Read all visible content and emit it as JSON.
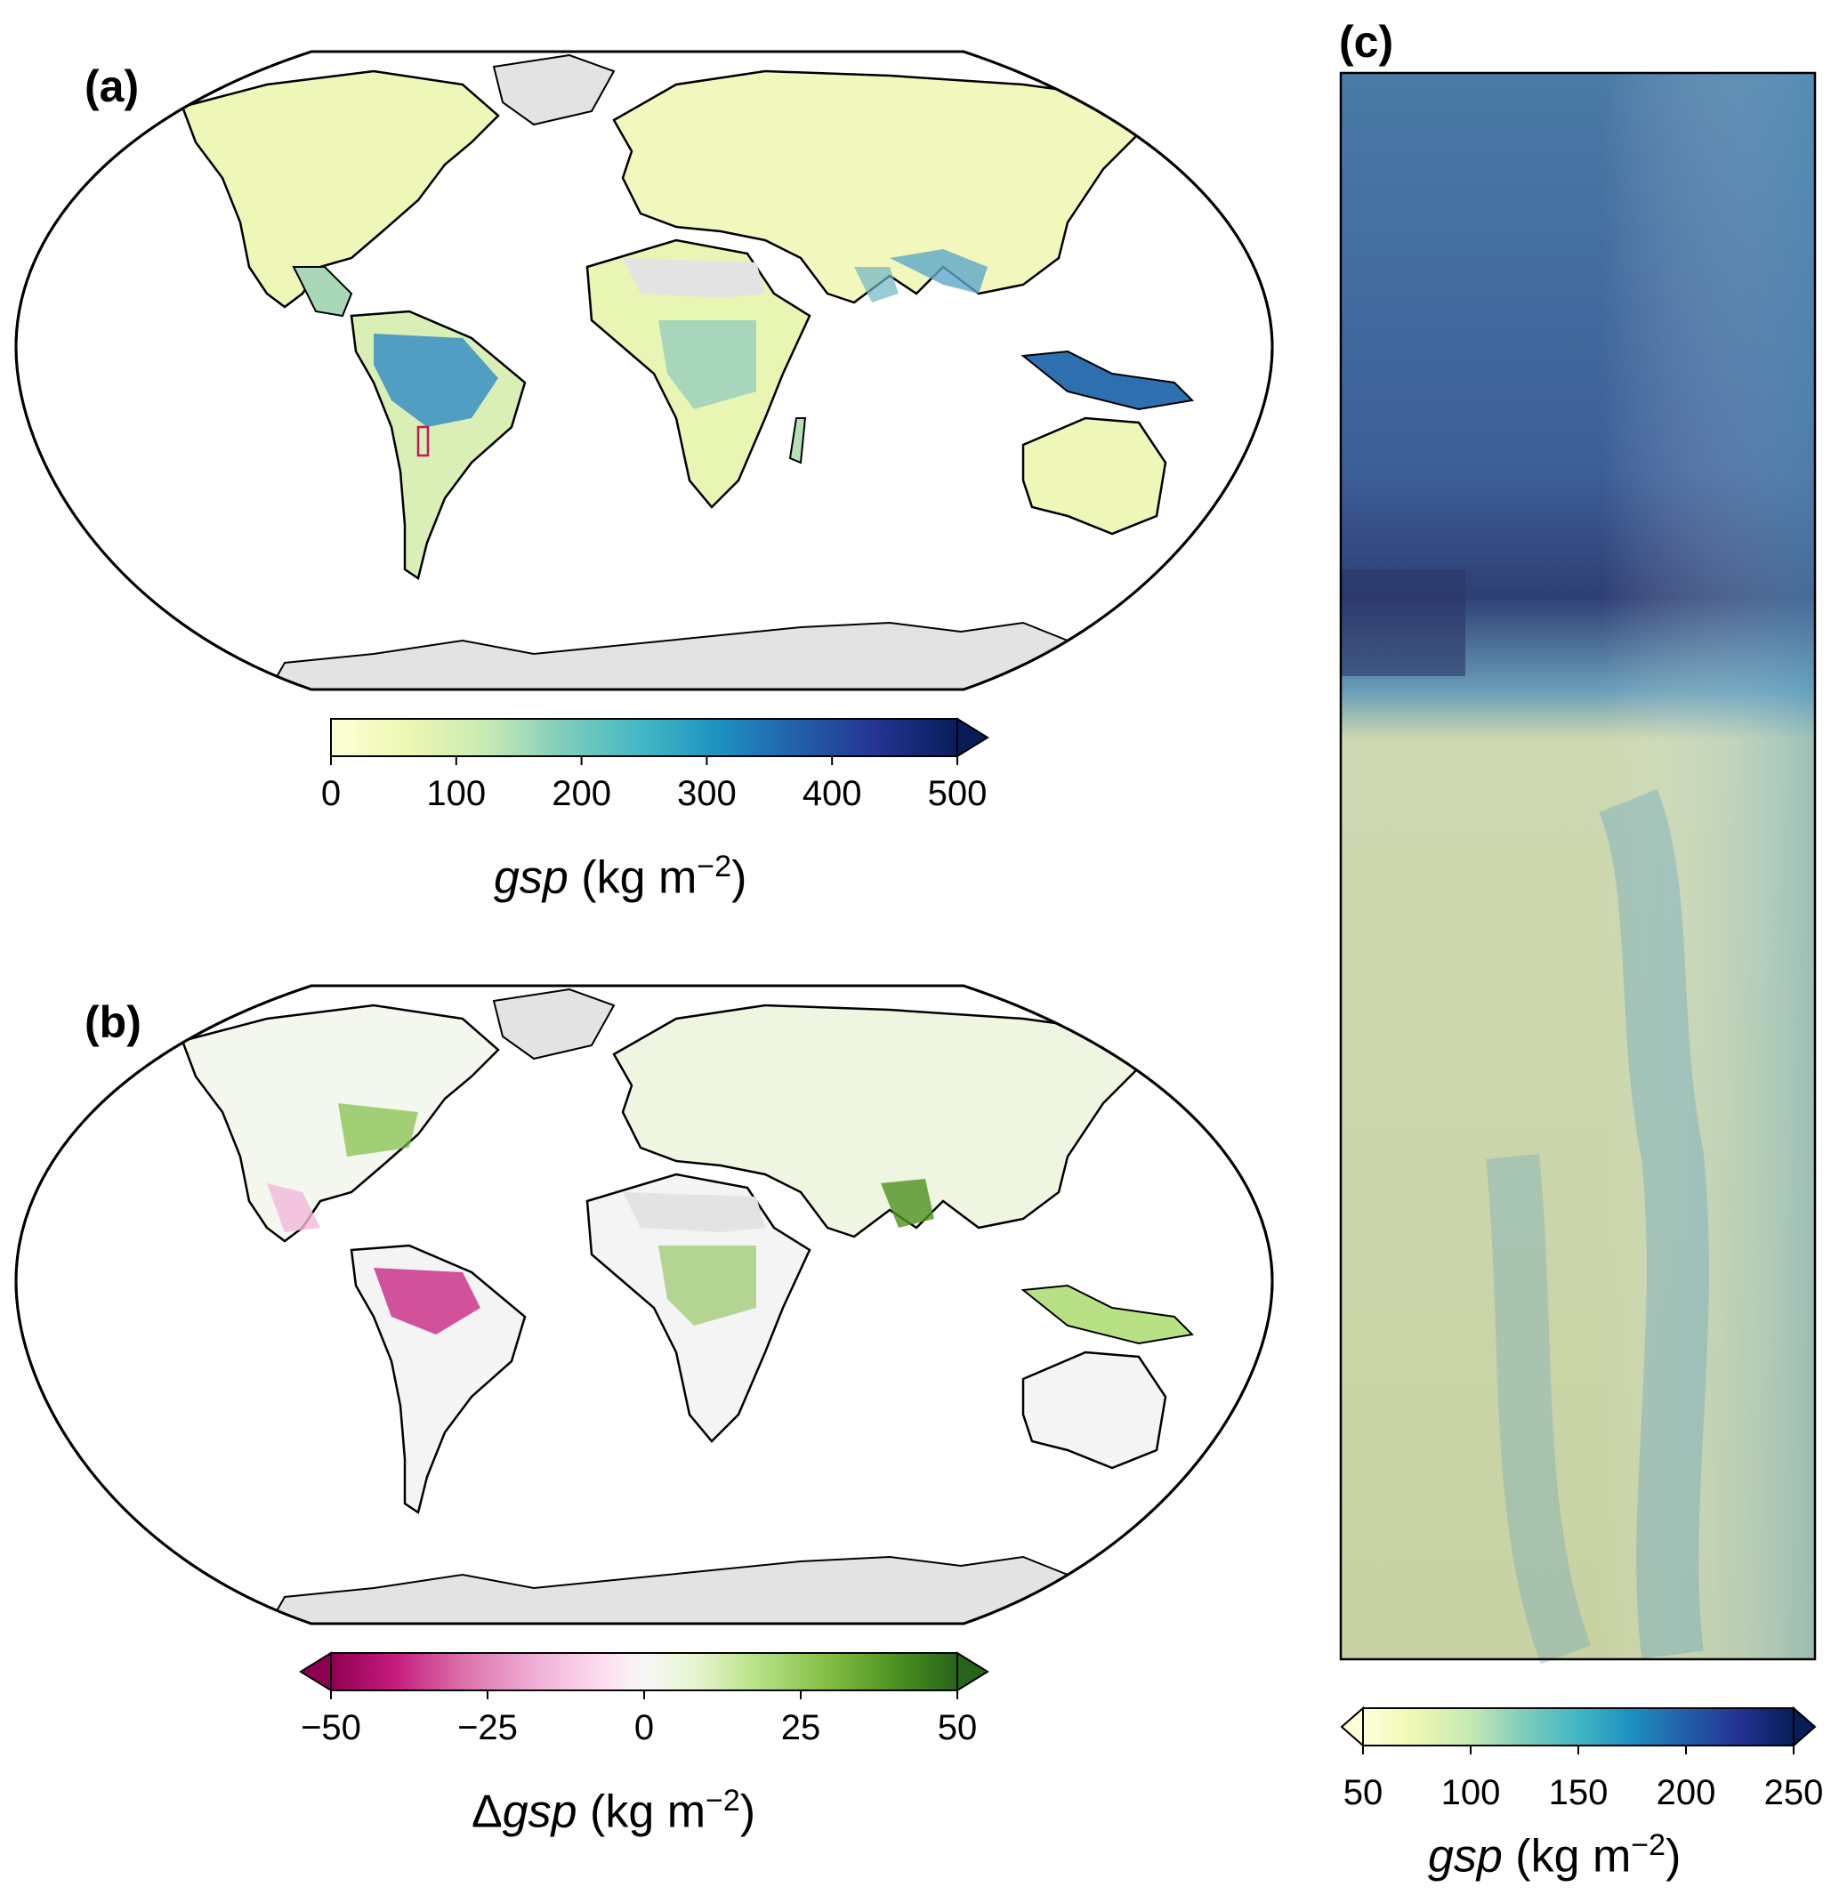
{
  "panels": {
    "a": {
      "label": "(a)",
      "colorbar": {
        "ticks": [
          "0",
          "100",
          "200",
          "300",
          "400",
          "500"
        ],
        "title_var": "gsp",
        "title_unit": "(kg m",
        "title_exp": "−2",
        "title_close": ")",
        "colors": [
          "#ffffd9",
          "#edf8b1",
          "#c7e9b4",
          "#7fcdbb",
          "#41b6c4",
          "#1d91c0",
          "#225ea8",
          "#253494",
          "#081d58"
        ]
      }
    },
    "b": {
      "label": "(b)",
      "colorbar": {
        "ticks": [
          "−50",
          "−25",
          "0",
          "25",
          "50"
        ],
        "title_prefix": "Δ",
        "title_var": "gsp",
        "title_unit": "(kg m",
        "title_exp": "−2",
        "title_close": ")",
        "colors": [
          "#8e0152",
          "#c51b7d",
          "#de77ae",
          "#f1b6da",
          "#fde0ef",
          "#f7f7f7",
          "#e6f5d0",
          "#b8e186",
          "#7fbc41",
          "#4d9221",
          "#276419"
        ]
      }
    },
    "c": {
      "label": "(c)",
      "colorbar": {
        "ticks": [
          "50",
          "100",
          "150",
          "200",
          "250"
        ],
        "title_var": "gsp",
        "title_unit": "(kg m",
        "title_exp": "−2",
        "title_close": ")",
        "colors": [
          "#ffffd9",
          "#edf8b1",
          "#c7e9b4",
          "#7fcdbb",
          "#41b6c4",
          "#1d91c0",
          "#225ea8",
          "#253494",
          "#081d58"
        ]
      }
    }
  },
  "colors": {
    "ice": "#e3e3e3",
    "outline": "#000000",
    "region_box": "#c2185b"
  }
}
